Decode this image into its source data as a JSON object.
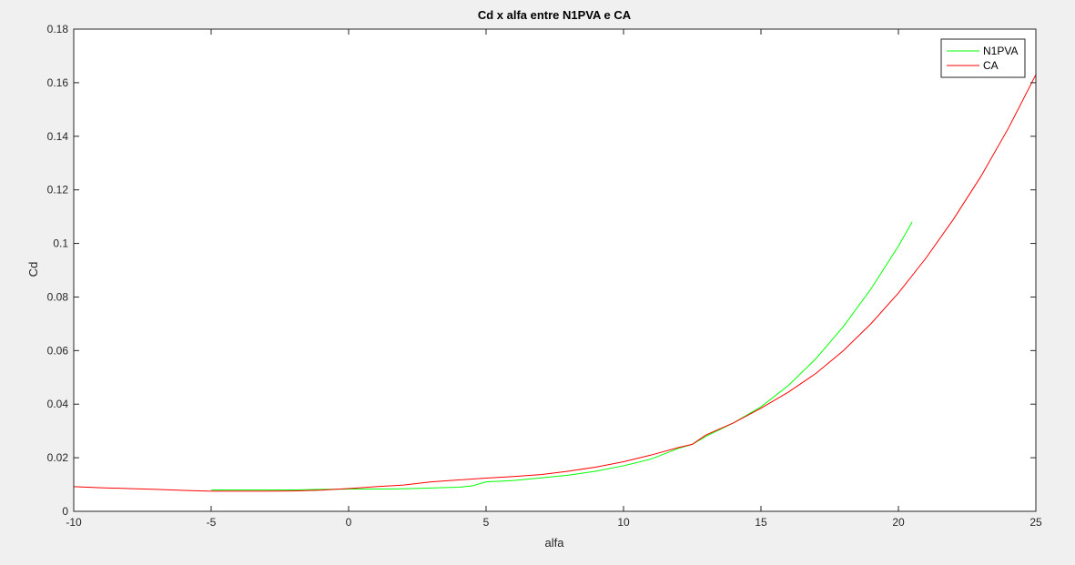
{
  "chart_data": {
    "type": "line",
    "title": "Cd x alfa entre N1PVA e CA",
    "xlabel": "alfa",
    "ylabel": "Cd",
    "xlim": [
      -10,
      25
    ],
    "ylim": [
      0,
      0.18
    ],
    "xticks": [
      -10,
      -5,
      0,
      5,
      10,
      15,
      20,
      25
    ],
    "yticks": [
      0,
      0.02,
      0.04,
      0.06,
      0.08,
      0.1,
      0.12,
      0.14,
      0.16,
      0.18
    ],
    "xtick_labels": [
      "-10",
      "-5",
      "0",
      "5",
      "10",
      "15",
      "20",
      "25"
    ],
    "ytick_labels": [
      "0",
      "0.02",
      "0.04",
      "0.06",
      "0.08",
      "0.1",
      "0.12",
      "0.14",
      "0.16",
      "0.18"
    ],
    "grid": false,
    "legend": "top-right",
    "series": [
      {
        "name": "N1PVA",
        "color": "#00ff00",
        "x": [
          -5,
          -4,
          -3,
          -2,
          -1,
          0,
          1,
          2,
          3,
          4,
          4.5,
          5,
          6,
          7,
          8,
          9,
          10,
          11,
          12,
          12.5,
          13,
          14,
          15,
          16,
          17,
          18,
          19,
          20,
          20.5
        ],
        "y": [
          0.008,
          0.008,
          0.008,
          0.008,
          0.0082,
          0.0083,
          0.0083,
          0.0084,
          0.0087,
          0.009,
          0.0095,
          0.011,
          0.0115,
          0.0125,
          0.0135,
          0.015,
          0.017,
          0.0195,
          0.0235,
          0.025,
          0.028,
          0.033,
          0.039,
          0.047,
          0.057,
          0.069,
          0.083,
          0.099,
          0.108
        ]
      },
      {
        "name": "CA",
        "color": "#ff0000",
        "x": [
          -10,
          -9,
          -8,
          -7,
          -6,
          -5,
          -4,
          -3,
          -2,
          -1,
          0,
          1,
          2,
          3,
          4,
          5,
          6,
          7,
          8,
          9,
          10,
          11,
          12,
          12.5,
          13,
          14,
          15,
          16,
          17,
          18,
          19,
          20,
          21,
          22,
          23,
          24,
          25
        ],
        "y": [
          0.0092,
          0.0088,
          0.0085,
          0.0082,
          0.0078,
          0.0075,
          0.0075,
          0.0075,
          0.0076,
          0.0079,
          0.0085,
          0.0092,
          0.0098,
          0.011,
          0.0117,
          0.0124,
          0.013,
          0.0137,
          0.015,
          0.0165,
          0.0185,
          0.021,
          0.0238,
          0.025,
          0.0285,
          0.033,
          0.0385,
          0.0445,
          0.0515,
          0.06,
          0.07,
          0.0815,
          0.0945,
          0.109,
          0.125,
          0.143,
          0.163
        ]
      }
    ]
  }
}
